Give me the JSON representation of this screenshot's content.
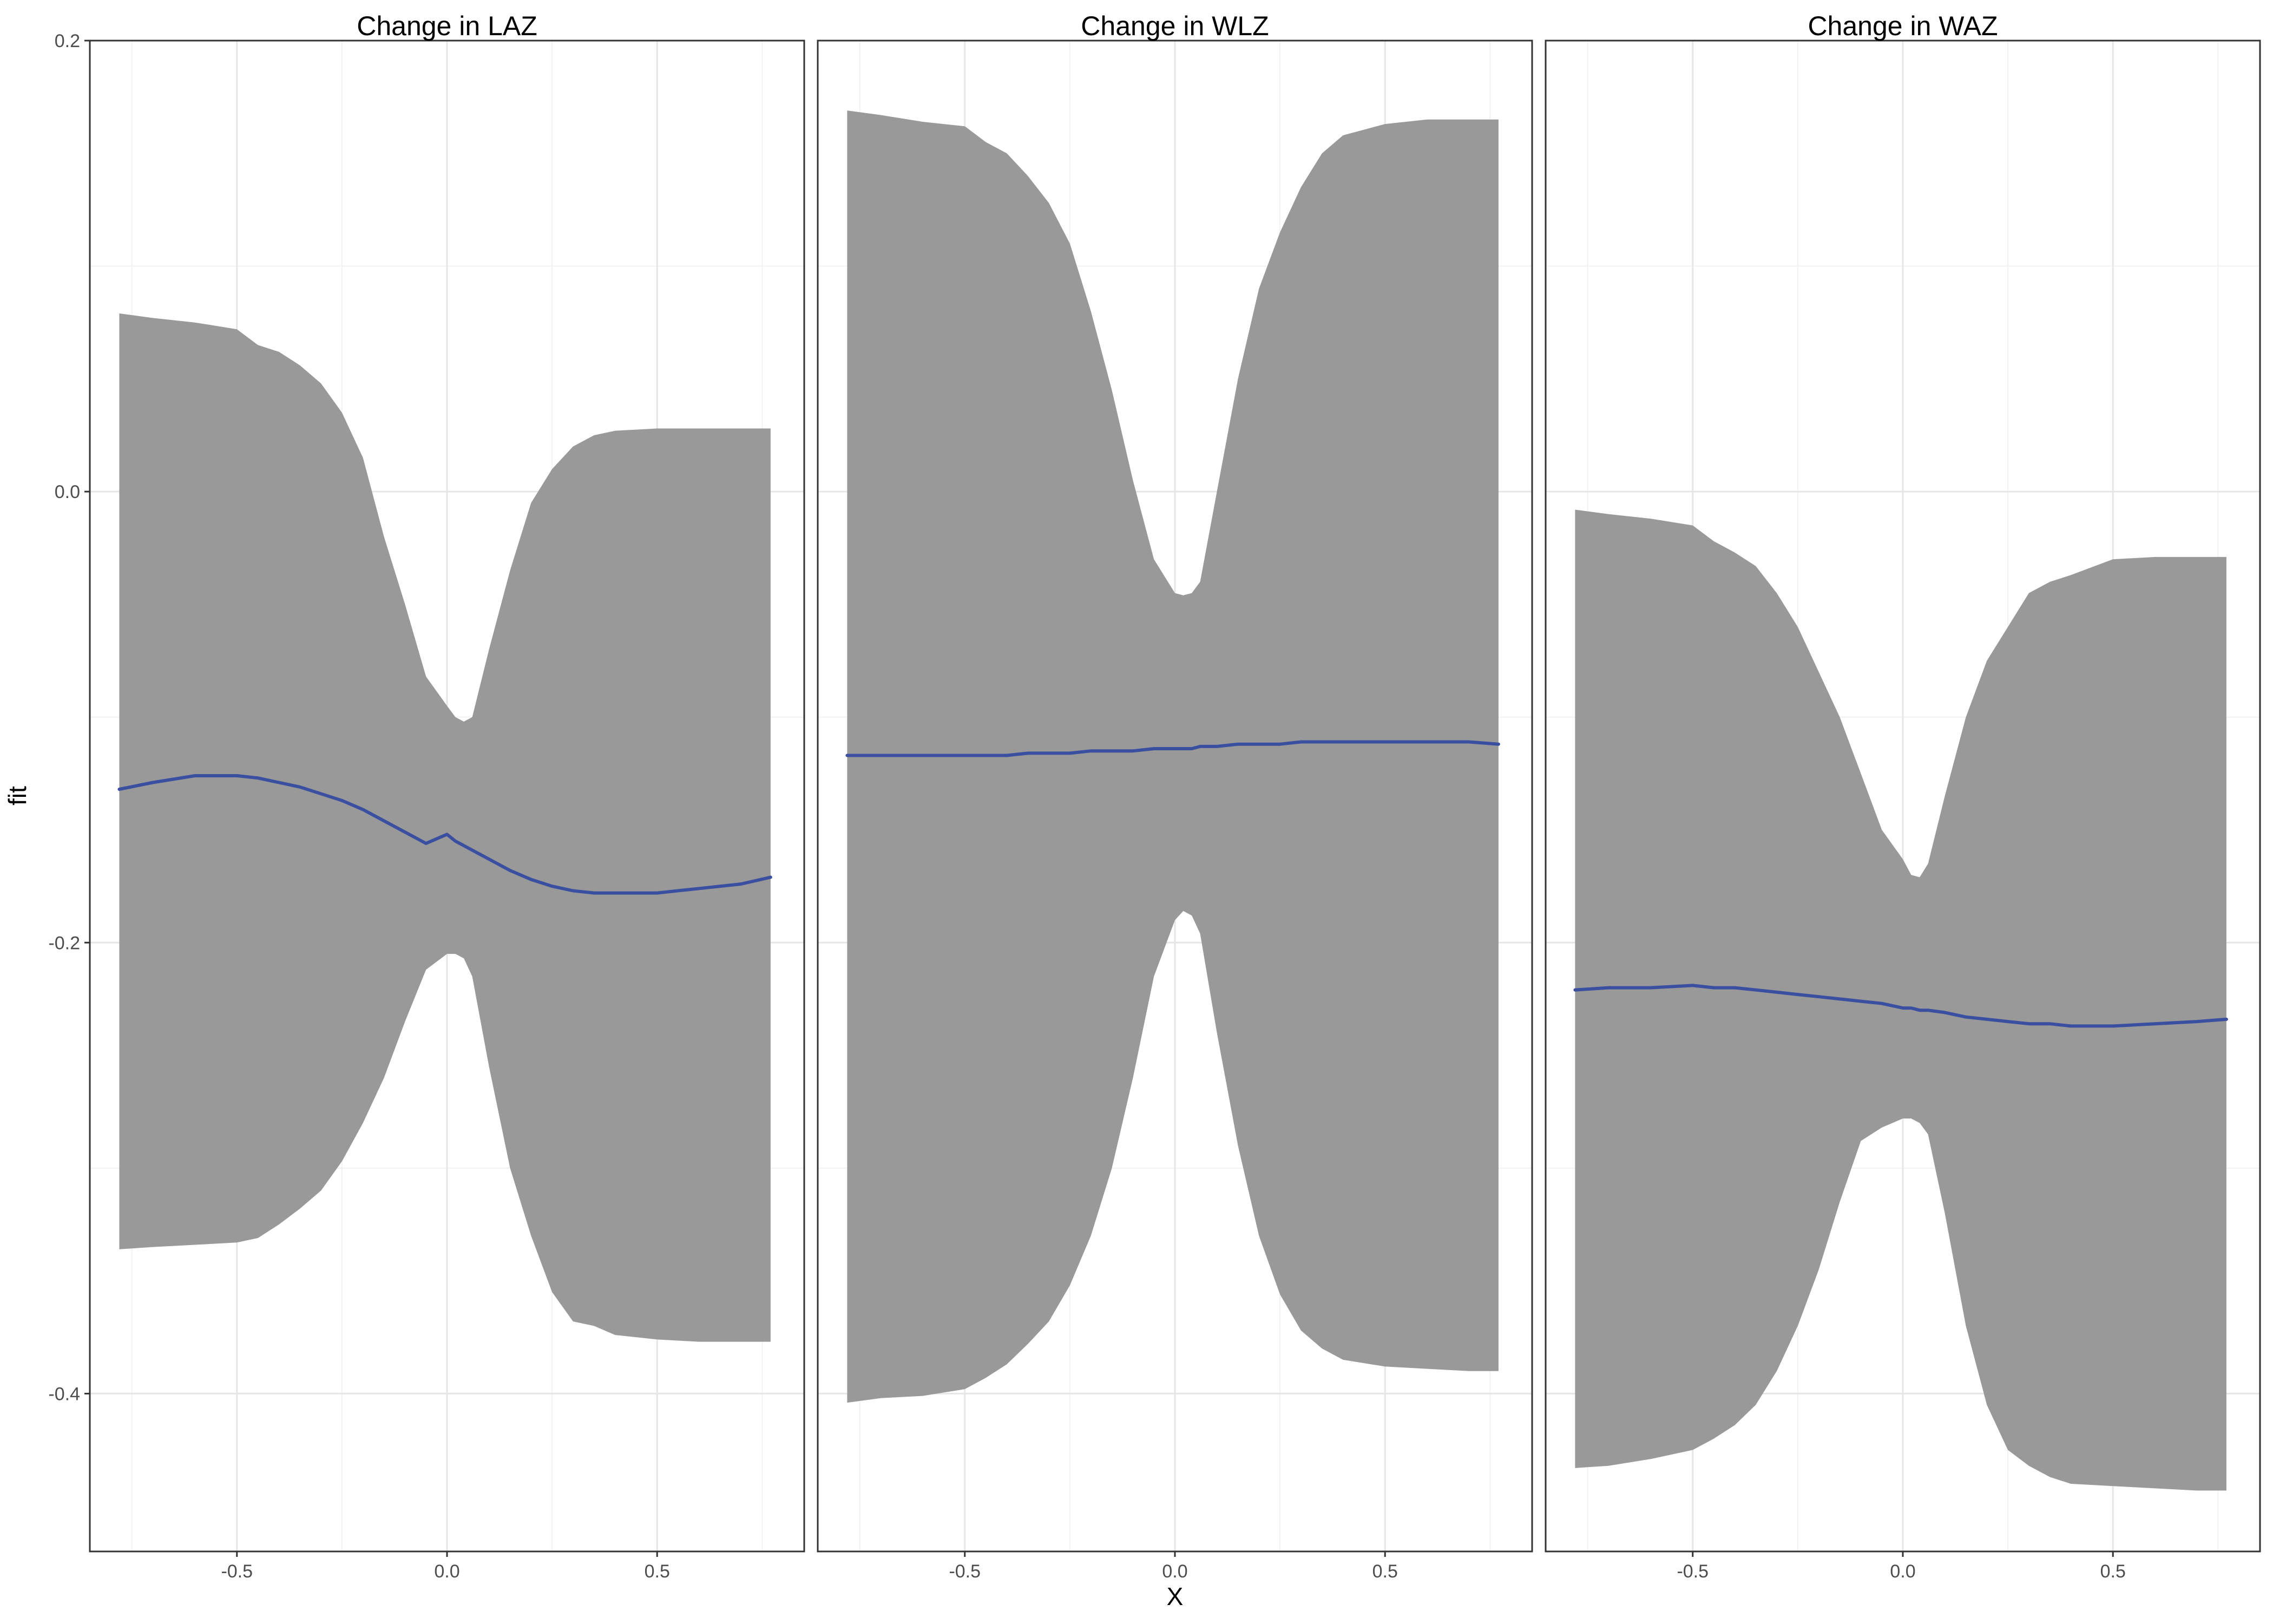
{
  "chart_data": {
    "type": "area",
    "xlabel": "X",
    "ylabel": "fit",
    "x_ticks": [
      -0.5,
      0.0,
      0.5
    ],
    "y_ticks": [
      0.2,
      0.0,
      -0.2,
      -0.4
    ],
    "x_tick_labels": [
      "-0.5",
      "0.0",
      "0.5"
    ],
    "y_tick_labels": [
      "0.2",
      "0.0",
      "-0.2",
      "-0.4"
    ],
    "xlim": [
      -0.85,
      0.85
    ],
    "ylim": [
      -0.47,
      0.2
    ],
    "grid": true,
    "line_color": "#3a4fa0",
    "band_color": "#999999",
    "panels": [
      {
        "title": "Change in LAZ",
        "x": [
          -0.78,
          -0.7,
          -0.6,
          -0.5,
          -0.45,
          -0.4,
          -0.35,
          -0.3,
          -0.25,
          -0.2,
          -0.15,
          -0.1,
          -0.05,
          0.0,
          0.02,
          0.04,
          0.06,
          0.1,
          0.15,
          0.2,
          0.25,
          0.3,
          0.35,
          0.4,
          0.5,
          0.6,
          0.7,
          0.77
        ],
        "fit": [
          -0.132,
          -0.129,
          -0.126,
          -0.126,
          -0.127,
          -0.129,
          -0.131,
          -0.134,
          -0.137,
          -0.141,
          -0.146,
          -0.151,
          -0.156,
          -0.152,
          -0.155,
          -0.157,
          -0.159,
          -0.163,
          -0.168,
          -0.172,
          -0.175,
          -0.177,
          -0.178,
          -0.178,
          -0.178,
          -0.176,
          -0.174,
          -0.171
        ],
        "upper": [
          0.079,
          0.077,
          0.075,
          0.072,
          0.065,
          0.062,
          0.056,
          0.048,
          0.035,
          0.015,
          -0.02,
          -0.05,
          -0.082,
          -0.095,
          -0.1,
          -0.102,
          -0.1,
          -0.07,
          -0.035,
          -0.005,
          0.01,
          0.02,
          0.025,
          0.027,
          0.028,
          0.028,
          0.028,
          0.028
        ],
        "lower": [
          -0.336,
          -0.335,
          -0.334,
          -0.333,
          -0.331,
          -0.325,
          -0.318,
          -0.31,
          -0.297,
          -0.28,
          -0.26,
          -0.235,
          -0.212,
          -0.205,
          -0.205,
          -0.207,
          -0.215,
          -0.255,
          -0.3,
          -0.33,
          -0.355,
          -0.368,
          -0.37,
          -0.374,
          -0.376,
          -0.377,
          -0.377,
          -0.377
        ]
      },
      {
        "title": "Change in WLZ",
        "x": [
          -0.78,
          -0.7,
          -0.6,
          -0.5,
          -0.45,
          -0.4,
          -0.35,
          -0.3,
          -0.25,
          -0.2,
          -0.15,
          -0.1,
          -0.05,
          0.0,
          0.02,
          0.04,
          0.06,
          0.1,
          0.15,
          0.2,
          0.25,
          0.3,
          0.35,
          0.4,
          0.5,
          0.6,
          0.7,
          0.77
        ],
        "fit": [
          -0.117,
          -0.117,
          -0.117,
          -0.117,
          -0.117,
          -0.117,
          -0.116,
          -0.116,
          -0.116,
          -0.115,
          -0.115,
          -0.115,
          -0.114,
          -0.114,
          -0.114,
          -0.114,
          -0.113,
          -0.113,
          -0.112,
          -0.112,
          -0.112,
          -0.111,
          -0.111,
          -0.111,
          -0.111,
          -0.111,
          -0.111,
          -0.112
        ],
        "upper": [
          0.169,
          0.167,
          0.164,
          0.162,
          0.155,
          0.15,
          0.14,
          0.128,
          0.11,
          0.08,
          0.045,
          0.005,
          -0.03,
          -0.045,
          -0.046,
          -0.045,
          -0.04,
          0.0,
          0.05,
          0.09,
          0.115,
          0.135,
          0.15,
          0.158,
          0.163,
          0.165,
          0.165,
          0.165
        ],
        "lower": [
          -0.404,
          -0.402,
          -0.401,
          -0.398,
          -0.393,
          -0.387,
          -0.378,
          -0.368,
          -0.352,
          -0.33,
          -0.3,
          -0.26,
          -0.215,
          -0.19,
          -0.186,
          -0.188,
          -0.196,
          -0.24,
          -0.29,
          -0.33,
          -0.356,
          -0.372,
          -0.38,
          -0.385,
          -0.388,
          -0.389,
          -0.39,
          -0.39
        ]
      },
      {
        "title": "Change in WAZ",
        "x": [
          -0.78,
          -0.7,
          -0.6,
          -0.5,
          -0.45,
          -0.4,
          -0.35,
          -0.3,
          -0.25,
          -0.2,
          -0.15,
          -0.1,
          -0.05,
          0.0,
          0.02,
          0.04,
          0.06,
          0.1,
          0.15,
          0.2,
          0.25,
          0.3,
          0.35,
          0.4,
          0.5,
          0.6,
          0.7,
          0.77
        ],
        "fit": [
          -0.221,
          -0.22,
          -0.22,
          -0.219,
          -0.22,
          -0.22,
          -0.221,
          -0.222,
          -0.223,
          -0.224,
          -0.225,
          -0.226,
          -0.227,
          -0.229,
          -0.229,
          -0.23,
          -0.23,
          -0.231,
          -0.233,
          -0.234,
          -0.235,
          -0.236,
          -0.236,
          -0.237,
          -0.237,
          -0.236,
          -0.235,
          -0.234
        ],
        "upper": [
          -0.008,
          -0.01,
          -0.012,
          -0.015,
          -0.022,
          -0.027,
          -0.033,
          -0.045,
          -0.06,
          -0.08,
          -0.1,
          -0.125,
          -0.15,
          -0.163,
          -0.17,
          -0.171,
          -0.165,
          -0.135,
          -0.1,
          -0.075,
          -0.06,
          -0.045,
          -0.04,
          -0.037,
          -0.03,
          -0.029,
          -0.029,
          -0.029
        ],
        "lower": [
          -0.433,
          -0.432,
          -0.429,
          -0.425,
          -0.42,
          -0.414,
          -0.405,
          -0.39,
          -0.37,
          -0.345,
          -0.315,
          -0.288,
          -0.282,
          -0.278,
          -0.278,
          -0.28,
          -0.285,
          -0.32,
          -0.37,
          -0.405,
          -0.425,
          -0.432,
          -0.437,
          -0.44,
          -0.441,
          -0.442,
          -0.443,
          -0.443
        ]
      }
    ]
  }
}
